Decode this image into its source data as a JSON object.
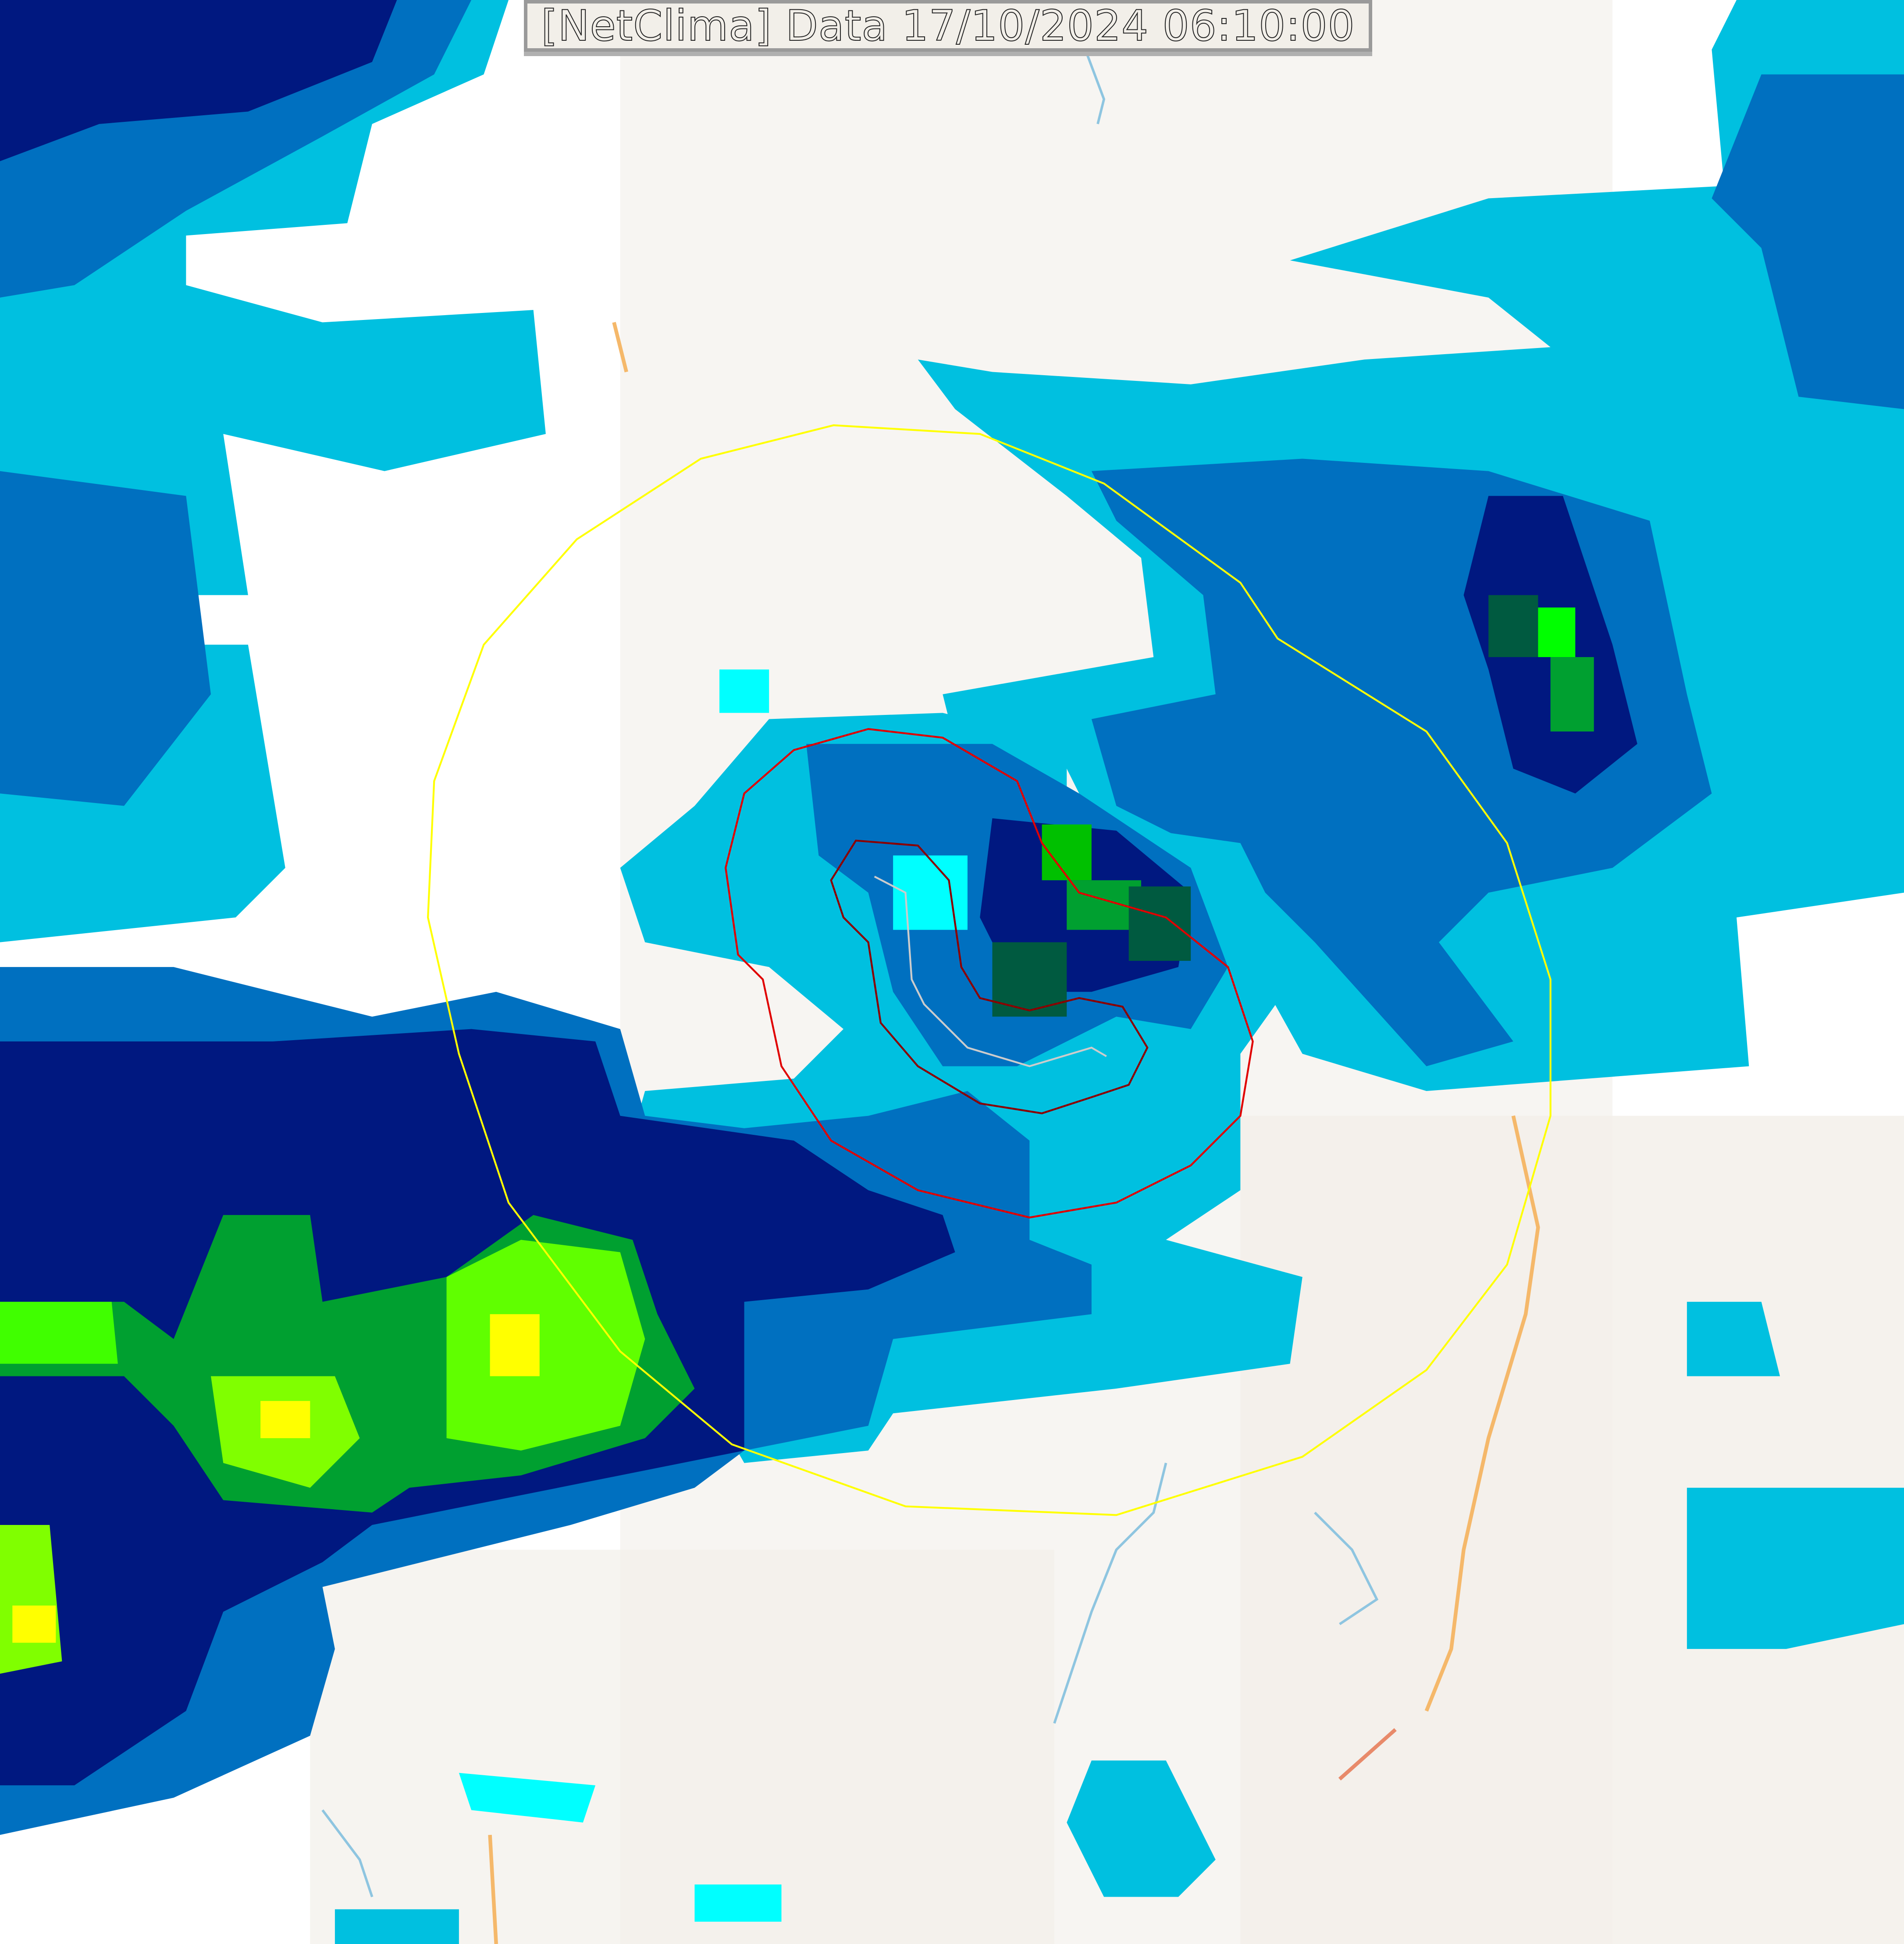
{
  "map": {
    "title": "[NetClima] Data 17/10/2024 06:10:00",
    "layers": [
      "radar-precipitation",
      "base-map",
      "outer-range-ring",
      "inner-range-ring",
      "track-line"
    ],
    "colors": {
      "background": "#ffffff",
      "land": "#f2efe9",
      "precip_light": "#00ffff",
      "precip_mid": "#00c0e0",
      "precip_blue": "#0070c0",
      "precip_dark": "#001880",
      "precip_darkgreen": "#005a40",
      "precip_green": "#00c000",
      "precip_lime": "#80ff00",
      "precip_yellow": "#ffff00",
      "outer_ring": "#ffff00",
      "inner_ring": "#e00000",
      "inner_ring_dark": "#8b0000",
      "river": "#8ec5e0",
      "road": "#f5b86a"
    }
  }
}
